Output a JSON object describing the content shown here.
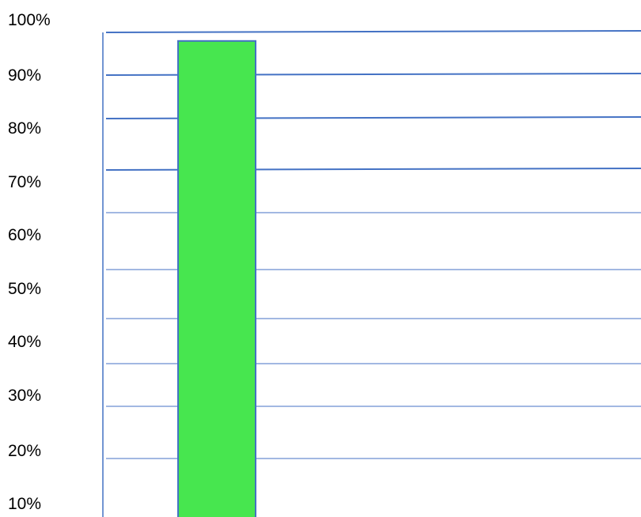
{
  "chart_data": {
    "type": "bar",
    "categories": [
      ""
    ],
    "values": [
      98
    ],
    "y_unit": "%",
    "ylim": [
      10,
      100
    ],
    "y_ticks": [
      {
        "label": "100%",
        "value": 100
      },
      {
        "label": "90%",
        "value": 90
      },
      {
        "label": "80%",
        "value": 80
      },
      {
        "label": "70%",
        "value": 70
      },
      {
        "label": "60%",
        "value": 60
      },
      {
        "label": "50%",
        "value": 50
      },
      {
        "label": "40%",
        "value": 40
      },
      {
        "label": "30%",
        "value": 30
      },
      {
        "label": "20%",
        "value": 20
      },
      {
        "label": "10%",
        "value": 10
      }
    ],
    "grid": true,
    "legend": "none",
    "colors": {
      "bar_fill": "#47e64f",
      "bar_stroke": "#4472c4",
      "grid": "#4472c4",
      "text": "#000000"
    }
  }
}
